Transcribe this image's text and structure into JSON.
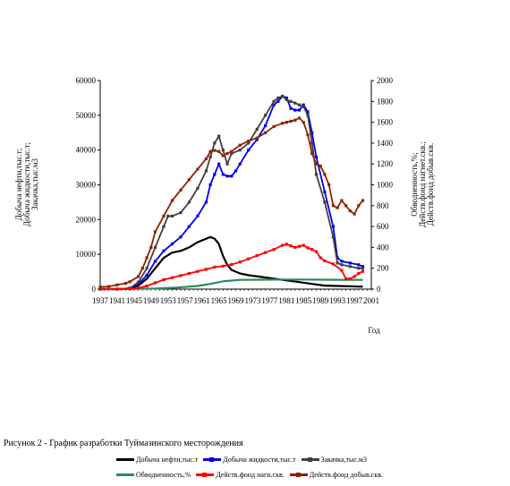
{
  "chart_data": {
    "type": "line",
    "y_left_label": [
      "Добыча нефти,тыс.т;",
      "Добыча жидкости,тыс.т;",
      "Закачка,тыс.м3"
    ],
    "y_right_label": [
      "Обводненность,%;",
      "Действ.фонд нагнет.скв.;",
      "Действ.фонд добыв.скв."
    ],
    "xlabel": "Год",
    "x_ticks": [
      "1937",
      "1941",
      "1945",
      "1949",
      "1953",
      "1957",
      "1961",
      "1965",
      "1969",
      "1973",
      "1977",
      "1981",
      "1985",
      "1989",
      "1993",
      "1997",
      "2001"
    ],
    "xlim": [
      1937,
      2001
    ],
    "ylim_left": [
      0,
      60000
    ],
    "ylim_right": [
      0,
      2000
    ],
    "y_left_ticks": [
      "0",
      "10000",
      "20000",
      "30000",
      "40000",
      "50000",
      "60000"
    ],
    "y_right_ticks": [
      "0",
      "200",
      "400",
      "600",
      "800",
      "1000",
      "1200",
      "1400",
      "1600",
      "1800",
      "2000"
    ],
    "series": [
      {
        "name": "Добыча нефти,тыс.т",
        "color": "#000000",
        "axis": "left",
        "marker": "none",
        "x": [
          1937,
          1941,
          1944,
          1946,
          1948,
          1950,
          1952,
          1954,
          1956,
          1958,
          1960,
          1962,
          1963,
          1964,
          1965,
          1966,
          1967,
          1968,
          1970,
          1972,
          1975,
          1978,
          1981,
          1984,
          1987,
          1990,
          1993,
          1996,
          1999
        ],
        "y": [
          0,
          0,
          100,
          1000,
          3000,
          6000,
          9000,
          10500,
          11000,
          12000,
          13500,
          14500,
          15000,
          14500,
          13000,
          9500,
          7000,
          5500,
          4500,
          4000,
          3500,
          3000,
          2500,
          2000,
          1500,
          1000,
          900,
          800,
          700
        ]
      },
      {
        "name": "Добыча жидкости,тыс.т",
        "color": "#0000ee",
        "axis": "left",
        "marker": "dot",
        "x": [
          1937,
          1941,
          1944,
          1946,
          1948,
          1950,
          1952,
          1954,
          1956,
          1958,
          1960,
          1962,
          1963,
          1964,
          1965,
          1966,
          1967,
          1968,
          1969,
          1970,
          1972,
          1974,
          1976,
          1978,
          1979,
          1980,
          1981,
          1982,
          1983,
          1984,
          1985,
          1986,
          1987,
          1988,
          1990,
          1992,
          1993,
          1994,
          1996,
          1998,
          1999
        ],
        "y": [
          0,
          0,
          300,
          1500,
          4000,
          8000,
          11000,
          13000,
          15000,
          18000,
          21000,
          25000,
          30000,
          33000,
          36000,
          33000,
          32500,
          32500,
          34000,
          36000,
          40000,
          43000,
          47000,
          53000,
          54000,
          55500,
          55000,
          52000,
          51500,
          51500,
          53000,
          51000,
          45000,
          38000,
          28000,
          18000,
          9000,
          8000,
          7500,
          7000,
          6500
        ]
      },
      {
        "name": "Закачка,тыс.м3",
        "color": "#404040",
        "axis": "left",
        "marker": "dot",
        "x": [
          1937,
          1941,
          1944,
          1946,
          1948,
          1950,
          1952,
          1953,
          1954,
          1956,
          1958,
          1960,
          1962,
          1963,
          1964,
          1965,
          1966,
          1967,
          1968,
          1970,
          1972,
          1974,
          1976,
          1978,
          1979,
          1980,
          1981,
          1982,
          1983,
          1984,
          1985,
          1986,
          1987,
          1988,
          1990,
          1992,
          1993,
          1994,
          1996,
          1998,
          1999
        ],
        "y": [
          0,
          0,
          200,
          2000,
          6000,
          12000,
          18000,
          21000,
          21000,
          22000,
          25000,
          29000,
          34000,
          38000,
          42000,
          44000,
          40000,
          36000,
          39000,
          40000,
          42000,
          46000,
          50000,
          54000,
          55000,
          55500,
          54500,
          54000,
          53500,
          53000,
          52500,
          50000,
          42000,
          33000,
          25000,
          15000,
          7500,
          7000,
          6500,
          6000,
          6000
        ]
      },
      {
        "name": "Обводненность,%",
        "color": "#2e8b57",
        "axis": "right",
        "marker": "none",
        "x": [
          1937,
          1950,
          1955,
          1960,
          1963,
          1966,
          1970,
          1975,
          1980,
          1985,
          1990,
          1995,
          1999
        ],
        "y": [
          0,
          5,
          15,
          30,
          50,
          75,
          88,
          90,
          92,
          92,
          90,
          88,
          88
        ]
      },
      {
        "name": "Действ.фонд нагн.скв.",
        "color": "#ff0000",
        "axis": "right",
        "marker": "dot",
        "x": [
          1937,
          1941,
          1944,
          1946,
          1948,
          1950,
          1952,
          1954,
          1956,
          1958,
          1960,
          1962,
          1964,
          1966,
          1968,
          1970,
          1972,
          1974,
          1976,
          1978,
          1980,
          1981,
          1982,
          1983,
          1984,
          1985,
          1986,
          1987,
          1988,
          1989,
          1990,
          1992,
          1994,
          1995,
          1996,
          1997,
          1998,
          1999
        ],
        "y": [
          0,
          0,
          2,
          10,
          30,
          60,
          90,
          110,
          130,
          150,
          170,
          190,
          210,
          220,
          235,
          260,
          290,
          320,
          350,
          380,
          420,
          430,
          415,
          400,
          410,
          420,
          395,
          380,
          360,
          300,
          270,
          240,
          180,
          100,
          100,
          120,
          150,
          170
        ]
      },
      {
        "name": "Действ.фонд добыв.скв.",
        "color": "#8b2500",
        "axis": "right",
        "marker": "dot",
        "x": [
          1937,
          1939,
          1941,
          1943,
          1944,
          1946,
          1947,
          1948,
          1949,
          1950,
          1952,
          1954,
          1956,
          1958,
          1960,
          1962,
          1963,
          1964,
          1965,
          1966,
          1967,
          1968,
          1970,
          1972,
          1974,
          1976,
          1978,
          1980,
          1981,
          1982,
          1983,
          1984,
          1985,
          1986,
          1987,
          1988,
          1989,
          1990,
          1991,
          1992,
          1993,
          1994,
          1995,
          1996,
          1997,
          1998,
          1999
        ],
        "y": [
          20,
          25,
          40,
          55,
          70,
          120,
          200,
          300,
          400,
          550,
          700,
          850,
          950,
          1050,
          1150,
          1250,
          1320,
          1330,
          1320,
          1280,
          1300,
          1320,
          1380,
          1420,
          1450,
          1500,
          1560,
          1590,
          1600,
          1610,
          1620,
          1640,
          1600,
          1480,
          1300,
          1200,
          1180,
          1100,
          1000,
          800,
          780,
          850,
          800,
          750,
          720,
          800,
          850
        ]
      }
    ],
    "caption": "Рисунок 2 - График разработки Туймазинского месторождения"
  }
}
